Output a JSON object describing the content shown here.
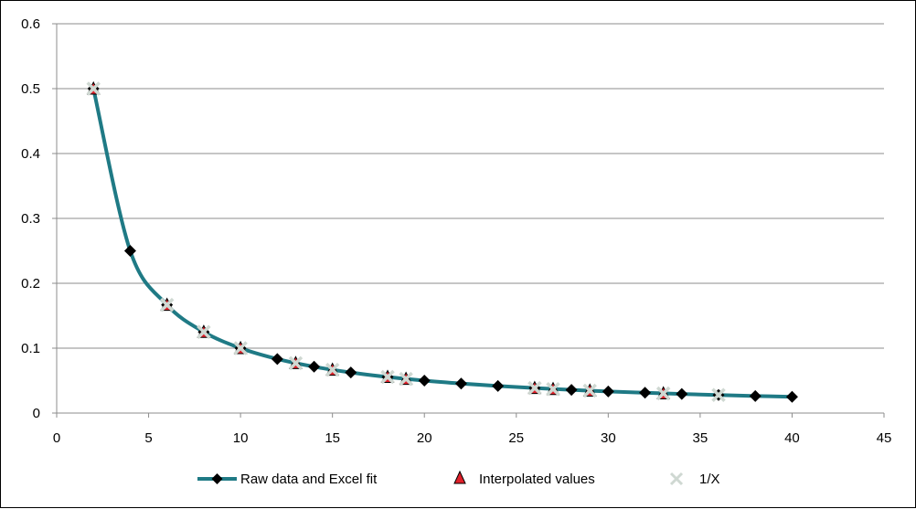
{
  "chart_data": {
    "type": "scatter",
    "title": "",
    "xlabel": "",
    "ylabel": "",
    "xlim": [
      0,
      45
    ],
    "ylim": [
      0,
      0.6
    ],
    "x_ticks": [
      "0",
      "5",
      "10",
      "15",
      "20",
      "25",
      "30",
      "35",
      "40",
      "45"
    ],
    "y_ticks": [
      "0",
      "0.1",
      "0.2",
      "0.3",
      "0.4",
      "0.5",
      "0.6"
    ],
    "grid": "horizontal",
    "legend_position": "bottom",
    "series": [
      {
        "name": "Raw data and Excel fit",
        "style": "smooth-line-with-diamond-markers",
        "color": "#1F7A85",
        "marker_color": "#000000",
        "x": [
          2,
          4,
          6,
          8,
          10,
          12,
          14,
          16,
          18,
          20,
          22,
          24,
          26,
          28,
          30,
          32,
          34,
          36,
          38,
          40
        ],
        "y": [
          0.5,
          0.25,
          0.1667,
          0.125,
          0.1,
          0.0833,
          0.0714,
          0.0625,
          0.0556,
          0.05,
          0.0455,
          0.0417,
          0.0385,
          0.0357,
          0.0333,
          0.0313,
          0.0294,
          0.0278,
          0.0263,
          0.025
        ]
      },
      {
        "name": "Interpolated values",
        "style": "triangle-markers",
        "color": "#E0202A",
        "x": [
          2,
          6,
          8,
          10,
          13,
          15,
          18,
          19,
          26,
          27,
          29,
          33
        ],
        "y": [
          0.5,
          0.1667,
          0.125,
          0.1,
          0.0769,
          0.0667,
          0.0556,
          0.0526,
          0.0385,
          0.037,
          0.0345,
          0.0303
        ]
      },
      {
        "name": "1/X",
        "style": "x-markers",
        "color": "#CFD8D2",
        "x": [
          2,
          6,
          8,
          10,
          13,
          15,
          18,
          19,
          26,
          27,
          29,
          33,
          36
        ],
        "y": [
          0.5,
          0.1667,
          0.125,
          0.1,
          0.0769,
          0.0667,
          0.0556,
          0.0526,
          0.0385,
          0.037,
          0.0345,
          0.0303,
          0.0278
        ]
      }
    ]
  }
}
